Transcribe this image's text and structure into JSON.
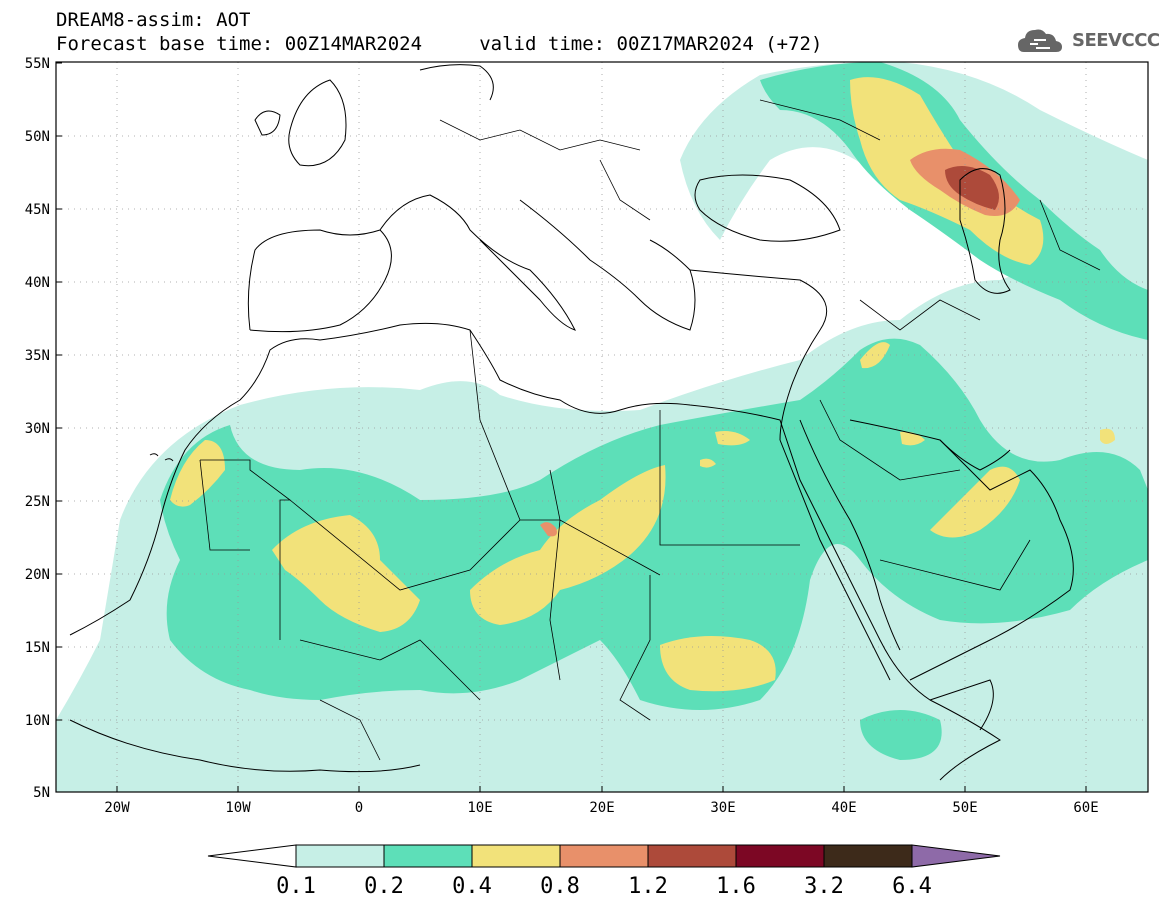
{
  "header": {
    "line1": "DREAM8-assim: AOT",
    "line2": "Forecast base time: 00Z14MAR2024     valid time: 00Z17MAR2024 (+72)"
  },
  "logo": {
    "text": "SEEVCCC",
    "icon": "cloud-icon"
  },
  "map": {
    "lat_labels": [
      "55N",
      "50N",
      "45N",
      "40N",
      "35N",
      "30N",
      "25N",
      "20N",
      "15N",
      "10N",
      "5N"
    ],
    "lon_labels": [
      "20W",
      "10W",
      "0",
      "10E",
      "20E",
      "30E",
      "40E",
      "50E",
      "60E"
    ],
    "lat_range": [
      5,
      55
    ],
    "lon_range": [
      -25,
      65
    ],
    "grid": "dotted"
  },
  "colorbar": {
    "labels": [
      "0.1",
      "0.2",
      "0.4",
      "0.8",
      "1.2",
      "1.6",
      "3.2",
      "6.4"
    ],
    "colors": [
      "#ffffff",
      "#c6efe6",
      "#5ddfb8",
      "#f2e27a",
      "#e8906a",
      "#ad4a3a",
      "#7c0724",
      "#3d2a1a",
      "#8e6aa8"
    ]
  }
}
